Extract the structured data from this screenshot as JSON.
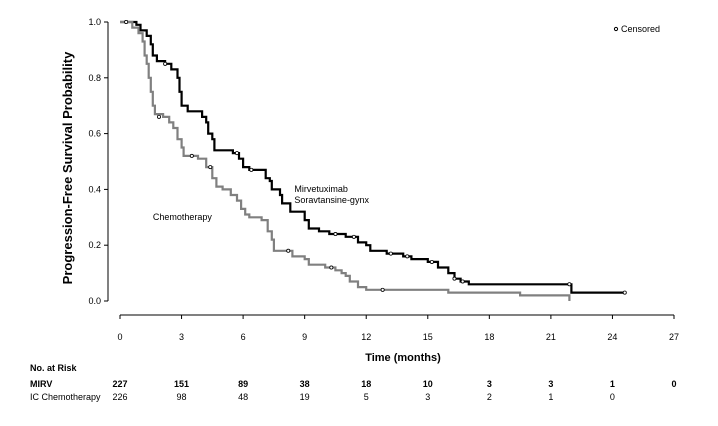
{
  "chart_data": {
    "type": "line",
    "title": "",
    "xlabel": "Time (months)",
    "ylabel": "Progression-Free Survival Probability",
    "xlim": [
      0,
      27
    ],
    "ylim": [
      0,
      1.0
    ],
    "x_ticks": [
      0,
      3,
      6,
      9,
      12,
      15,
      18,
      21,
      24,
      27
    ],
    "y_ticks": [
      0.0,
      0.2,
      0.4,
      0.6,
      0.8,
      1.0
    ],
    "x_tick_labels": [
      "0",
      "3",
      "6",
      "9",
      "12",
      "15",
      "18",
      "21",
      "24",
      "27"
    ],
    "y_tick_labels": [
      "0.0",
      "0.2",
      "0.4",
      "0.6",
      "0.8",
      "1.0"
    ],
    "legend": {
      "censored_label": "Censored",
      "position": "top-right"
    },
    "series": [
      {
        "name": "Mirvetuximab Soravtansine-gynx",
        "color": "#000000",
        "label_lines": [
          "Mirvetuximab",
          "Soravtansine-gynx"
        ],
        "label_at": {
          "x": 8.5,
          "y": 0.39
        },
        "points": [
          [
            0,
            1.0
          ],
          [
            0.8,
            0.99
          ],
          [
            1.0,
            0.97
          ],
          [
            1.3,
            0.95
          ],
          [
            1.5,
            0.92
          ],
          [
            1.6,
            0.88
          ],
          [
            1.8,
            0.86
          ],
          [
            2.2,
            0.85
          ],
          [
            2.5,
            0.83
          ],
          [
            2.8,
            0.8
          ],
          [
            2.9,
            0.75
          ],
          [
            3.0,
            0.7
          ],
          [
            3.3,
            0.68
          ],
          [
            4.0,
            0.66
          ],
          [
            4.2,
            0.64
          ],
          [
            4.3,
            0.6
          ],
          [
            4.5,
            0.58
          ],
          [
            4.6,
            0.54
          ],
          [
            5.5,
            0.53
          ],
          [
            5.6,
            0.53
          ],
          [
            5.8,
            0.51
          ],
          [
            6.0,
            0.48
          ],
          [
            6.3,
            0.47
          ],
          [
            6.8,
            0.47
          ],
          [
            7.1,
            0.44
          ],
          [
            7.3,
            0.43
          ],
          [
            7.4,
            0.4
          ],
          [
            7.8,
            0.38
          ],
          [
            7.9,
            0.35
          ],
          [
            8.3,
            0.32
          ],
          [
            8.8,
            0.32
          ],
          [
            9.0,
            0.29
          ],
          [
            9.2,
            0.26
          ],
          [
            9.7,
            0.25
          ],
          [
            10.2,
            0.24
          ],
          [
            11.0,
            0.23
          ],
          [
            11.6,
            0.21
          ],
          [
            12.0,
            0.2
          ],
          [
            12.2,
            0.18
          ],
          [
            13.0,
            0.17
          ],
          [
            13.8,
            0.16
          ],
          [
            14.2,
            0.15
          ],
          [
            15.0,
            0.14
          ],
          [
            15.5,
            0.12
          ],
          [
            16.0,
            0.1
          ],
          [
            16.3,
            0.08
          ],
          [
            16.6,
            0.07
          ],
          [
            17.0,
            0.06
          ],
          [
            21.9,
            0.06
          ],
          [
            22.0,
            0.03
          ],
          [
            24.6,
            0.03
          ]
        ],
        "censored": [
          [
            0.3,
            1.0
          ],
          [
            2.2,
            0.85
          ],
          [
            5.7,
            0.53
          ],
          [
            6.4,
            0.47
          ],
          [
            10.5,
            0.24
          ],
          [
            11.4,
            0.23
          ],
          [
            13.2,
            0.17
          ],
          [
            14.0,
            0.16
          ],
          [
            15.2,
            0.14
          ],
          [
            16.3,
            0.08
          ],
          [
            16.7,
            0.07
          ],
          [
            21.9,
            0.06
          ],
          [
            24.6,
            0.03
          ]
        ]
      },
      {
        "name": "Chemotherapy",
        "color": "#808080",
        "label_lines": [
          "Chemotherapy"
        ],
        "label_at": {
          "x": 1.6,
          "y": 0.29
        },
        "points": [
          [
            0,
            1.0
          ],
          [
            0.6,
            0.98
          ],
          [
            0.9,
            0.96
          ],
          [
            1.1,
            0.93
          ],
          [
            1.2,
            0.88
          ],
          [
            1.3,
            0.85
          ],
          [
            1.4,
            0.8
          ],
          [
            1.5,
            0.75
          ],
          [
            1.6,
            0.7
          ],
          [
            1.7,
            0.67
          ],
          [
            2.1,
            0.66
          ],
          [
            2.4,
            0.64
          ],
          [
            2.6,
            0.62
          ],
          [
            2.8,
            0.58
          ],
          [
            3.0,
            0.55
          ],
          [
            3.1,
            0.52
          ],
          [
            3.8,
            0.51
          ],
          [
            4.2,
            0.48
          ],
          [
            4.5,
            0.44
          ],
          [
            4.7,
            0.41
          ],
          [
            5.0,
            0.4
          ],
          [
            5.4,
            0.38
          ],
          [
            5.7,
            0.36
          ],
          [
            5.9,
            0.33
          ],
          [
            6.1,
            0.31
          ],
          [
            6.3,
            0.3
          ],
          [
            6.9,
            0.29
          ],
          [
            7.2,
            0.25
          ],
          [
            7.4,
            0.22
          ],
          [
            7.5,
            0.18
          ],
          [
            8.0,
            0.18
          ],
          [
            8.4,
            0.16
          ],
          [
            9.0,
            0.15
          ],
          [
            9.2,
            0.13
          ],
          [
            10.0,
            0.12
          ],
          [
            10.5,
            0.11
          ],
          [
            10.8,
            0.1
          ],
          [
            11.0,
            0.09
          ],
          [
            11.2,
            0.07
          ],
          [
            11.6,
            0.05
          ],
          [
            12.0,
            0.04
          ],
          [
            15.8,
            0.04
          ],
          [
            16.0,
            0.03
          ],
          [
            19.5,
            0.02
          ],
          [
            21.5,
            0.02
          ],
          [
            21.9,
            0.0
          ]
        ],
        "censored": [
          [
            0.3,
            1.0
          ],
          [
            1.9,
            0.66
          ],
          [
            3.5,
            0.52
          ],
          [
            4.4,
            0.48
          ],
          [
            8.2,
            0.18
          ],
          [
            10.3,
            0.12
          ],
          [
            12.8,
            0.04
          ]
        ]
      }
    ],
    "risk_table": {
      "title": "No. at Risk",
      "times": [
        0,
        3,
        6,
        9,
        12,
        15,
        18,
        21,
        24,
        27
      ],
      "rows": [
        {
          "label": "MIRV",
          "bold": true,
          "values": [
            "227",
            "151",
            "89",
            "38",
            "18",
            "10",
            "3",
            "3",
            "1",
            "0"
          ]
        },
        {
          "label": "IC Chemotherapy",
          "bold": false,
          "values": [
            "226",
            "98",
            "48",
            "19",
            "5",
            "3",
            "2",
            "1",
            "0",
            ""
          ]
        }
      ]
    }
  }
}
